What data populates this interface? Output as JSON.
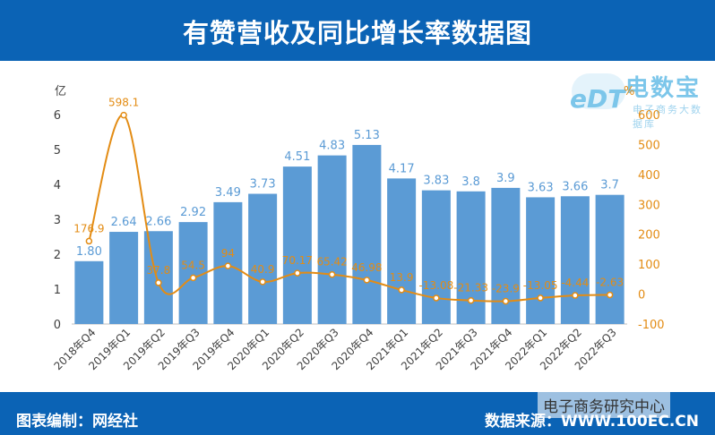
{
  "header": {
    "title": "有赞营收及同比增长率数据图"
  },
  "logo": {
    "brand": "电数宝",
    "tagline": "电子商务大数据库",
    "mark": "eDT"
  },
  "footer": {
    "left": "图表编制：网经社",
    "right": "数据来源：WWW.100EC.CN"
  },
  "watermark": "电子商务研究中心",
  "colors": {
    "bar": "#5b9bd5",
    "line": "#e38c14",
    "header": "#0b63b5"
  },
  "chart_data": {
    "type": "bar",
    "title": "有赞营收及同比增长率数据图",
    "categories": [
      "2018年Q4",
      "2019年Q1",
      "2019年Q2",
      "2019年Q3",
      "2019年Q4",
      "2020年Q1",
      "2020年Q2",
      "2020年Q3",
      "2020年Q4",
      "2021年Q1",
      "2021年Q2",
      "2021年Q3",
      "2021年Q4",
      "2022年Q1",
      "2022年Q2",
      "2022年Q3"
    ],
    "series": [
      {
        "name": "营收",
        "type": "bar",
        "axis": "left",
        "values": [
          1.8,
          2.64,
          2.66,
          2.92,
          3.49,
          3.73,
          4.51,
          4.83,
          5.13,
          4.17,
          3.83,
          3.8,
          3.9,
          3.63,
          3.66,
          3.7
        ],
        "labels": [
          "1.80",
          "2.64",
          "2.66",
          "2.92",
          "3.49",
          "3.73",
          "4.51",
          "4.83",
          "5.13",
          "4.17",
          "3.83",
          "3.8",
          "3.9",
          "3.63",
          "3.66",
          "3.7"
        ]
      },
      {
        "name": "同比增长率",
        "type": "line",
        "axis": "right",
        "values": [
          176.9,
          598.1,
          37.8,
          54.5,
          94,
          40.9,
          70.17,
          65.42,
          46.98,
          13.9,
          -13.08,
          -21.33,
          -23.9,
          -13.05,
          -4.44,
          -2.63
        ],
        "labels": [
          "176.9",
          "598.1",
          "37.8",
          "54.5",
          "94",
          "40.9",
          "70.17",
          "65.42",
          "46.98",
          "13.9",
          "-13.08",
          "-21.33",
          "-23.9",
          "-13.05",
          "-4.44",
          "-2.63"
        ]
      }
    ],
    "y_left": {
      "unit": "亿",
      "min": 0,
      "max": 6,
      "ticks": [
        0,
        1,
        2,
        3,
        4,
        5,
        6
      ]
    },
    "y_right": {
      "unit": "%",
      "min": -100,
      "max": 600,
      "ticks": [
        -100,
        0,
        100,
        200,
        300,
        400,
        500,
        600
      ]
    },
    "grid": false,
    "legend": "none"
  }
}
